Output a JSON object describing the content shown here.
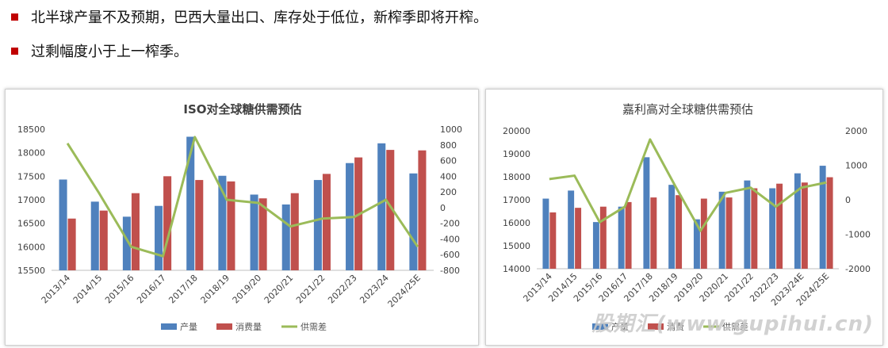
{
  "bullets": [
    "北半球产量不及预期，巴西大量出口、库存处于低位，新榨季即将开榨。",
    "过剩幅度小于上一榨季。"
  ],
  "watermark": "股期汇(www.gupihui.cn)",
  "colors": {
    "production": "#4f81bd",
    "consumption": "#c0504d",
    "balance": "#9bbb59",
    "bullet": "#c00000"
  },
  "chart_data": [
    {
      "type": "bar",
      "title": "ISO对全球糖供需预估",
      "categories": [
        "2013/14",
        "2014/15",
        "2015/16",
        "2016/17",
        "2017/18",
        "2018/19",
        "2019/20",
        "2020/21",
        "2021/22",
        "2022/23",
        "2023/24",
        "2024/25E"
      ],
      "ylim": [
        15500,
        18500
      ],
      "yticks": [
        15500,
        16000,
        16500,
        17000,
        17500,
        18000,
        18500
      ],
      "y2lim": [
        -800,
        1000
      ],
      "y2ticks": [
        -800,
        -600,
        -400,
        -200,
        0,
        200,
        400,
        600,
        800,
        1000
      ],
      "series": [
        {
          "name": "产量",
          "axis": "left",
          "kind": "bar",
          "values": [
            17430,
            16960,
            16640,
            16870,
            18340,
            17510,
            17110,
            16900,
            17420,
            17780,
            18200,
            17560
          ]
        },
        {
          "name": "消费量",
          "axis": "left",
          "kind": "bar",
          "values": [
            16600,
            16770,
            17140,
            17500,
            17420,
            17390,
            17030,
            17140,
            17550,
            17900,
            18060,
            18050
          ]
        },
        {
          "name": "供需差",
          "axis": "right",
          "kind": "line",
          "values": [
            820,
            180,
            -500,
            -620,
            900,
            100,
            60,
            -240,
            -140,
            -120,
            100,
            -500
          ]
        }
      ],
      "legend": "bottom"
    },
    {
      "type": "bar",
      "title": "嘉利高对全球糖供需预估",
      "categories": [
        "2013/14",
        "2014/15",
        "2015/16",
        "2016/17",
        "2017/18",
        "2018/19",
        "2019/20",
        "2020/21",
        "2021/22",
        "2022/23",
        "2023/24E",
        "2024/25E"
      ],
      "ylim": [
        14000,
        20000
      ],
      "yticks": [
        14000,
        15000,
        16000,
        17000,
        18000,
        19000,
        20000
      ],
      "y2lim": [
        -2000,
        2000
      ],
      "y2ticks": [
        -2000,
        -1000,
        0,
        1000,
        2000
      ],
      "series": [
        {
          "name": "产量",
          "axis": "left",
          "kind": "bar",
          "values": [
            17050,
            17400,
            16030,
            16700,
            18850,
            17650,
            16150,
            17350,
            17840,
            17500,
            18150,
            18480
          ]
        },
        {
          "name": "消费",
          "axis": "left",
          "kind": "bar",
          "values": [
            16450,
            16650,
            16700,
            16900,
            17100,
            17200,
            17050,
            17100,
            17500,
            17700,
            17750,
            17980
          ]
        },
        {
          "name": "供需差",
          "axis": "right",
          "kind": "line",
          "values": [
            600,
            700,
            -650,
            -200,
            1750,
            400,
            -900,
            200,
            350,
            -200,
            350,
            500
          ]
        }
      ],
      "legend": "bottom"
    }
  ]
}
